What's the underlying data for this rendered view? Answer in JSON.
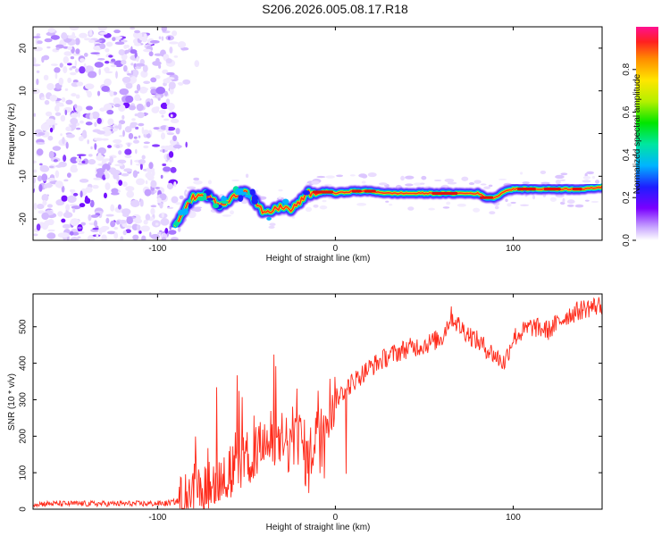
{
  "title": "S206.2026.005.08.17.R18",
  "chart_data": [
    {
      "type": "heatmap",
      "name": "spectrogram",
      "xlabel": "Height of straight line (km)",
      "ylabel": "Frequency (Hz)",
      "xlim": [
        -170,
        150
      ],
      "ylim": [
        -25,
        25
      ],
      "xticks": [
        -100,
        0,
        100
      ],
      "yticks": [
        -20,
        -10,
        0,
        10,
        20
      ],
      "colorbar": {
        "label": "Normalized spectral amplitude",
        "range": [
          0,
          1
        ],
        "ticks": [
          0.0,
          0.2,
          0.4,
          0.6,
          0.8
        ]
      },
      "noise_region_x": [
        -170,
        -90
      ],
      "ridge": {
        "x": [
          -90,
          -85,
          -80,
          -75,
          -70,
          -65,
          -60,
          -55,
          -50,
          -45,
          -40,
          -35,
          -30,
          -25,
          -20,
          -15,
          -10,
          -5,
          0,
          10,
          20,
          30,
          40,
          50,
          60,
          70,
          80,
          85,
          90,
          95,
          100,
          110,
          120,
          130,
          140,
          150
        ],
        "y": [
          -21,
          -18,
          -15,
          -14,
          -15,
          -17,
          -16,
          -14,
          -13,
          -16,
          -19,
          -18,
          -17,
          -18,
          -16,
          -14,
          -14,
          -13.5,
          -14,
          -13.5,
          -13.5,
          -14,
          -14,
          -14,
          -14,
          -14,
          -14,
          -15,
          -15,
          -13.5,
          -13,
          -13,
          -13,
          -13,
          -13,
          -12.5
        ]
      }
    },
    {
      "type": "line",
      "name": "snr",
      "xlabel": "Height of straight line (km)",
      "ylabel": "SNR (10 * v/v)",
      "xlim": [
        -170,
        150
      ],
      "ylim": [
        0,
        590
      ],
      "xticks": [
        -100,
        0,
        100
      ],
      "yticks": [
        0,
        100,
        200,
        300,
        400,
        500
      ],
      "color": "#ff2a1a",
      "trend": {
        "x": [
          -170,
          -150,
          -130,
          -110,
          -95,
          -85,
          -80,
          -70,
          -60,
          -50,
          -40,
          -30,
          -20,
          -15,
          -10,
          0,
          10,
          20,
          30,
          40,
          50,
          60,
          65,
          70,
          80,
          90,
          95,
          100,
          110,
          120,
          130,
          140,
          150
        ],
        "y": [
          15,
          15,
          15,
          15,
          16,
          25,
          50,
          80,
          100,
          140,
          180,
          170,
          200,
          120,
          250,
          300,
          350,
          390,
          420,
          440,
          450,
          470,
          530,
          500,
          460,
          420,
          400,
          470,
          500,
          490,
          530,
          550,
          560
        ]
      }
    }
  ]
}
